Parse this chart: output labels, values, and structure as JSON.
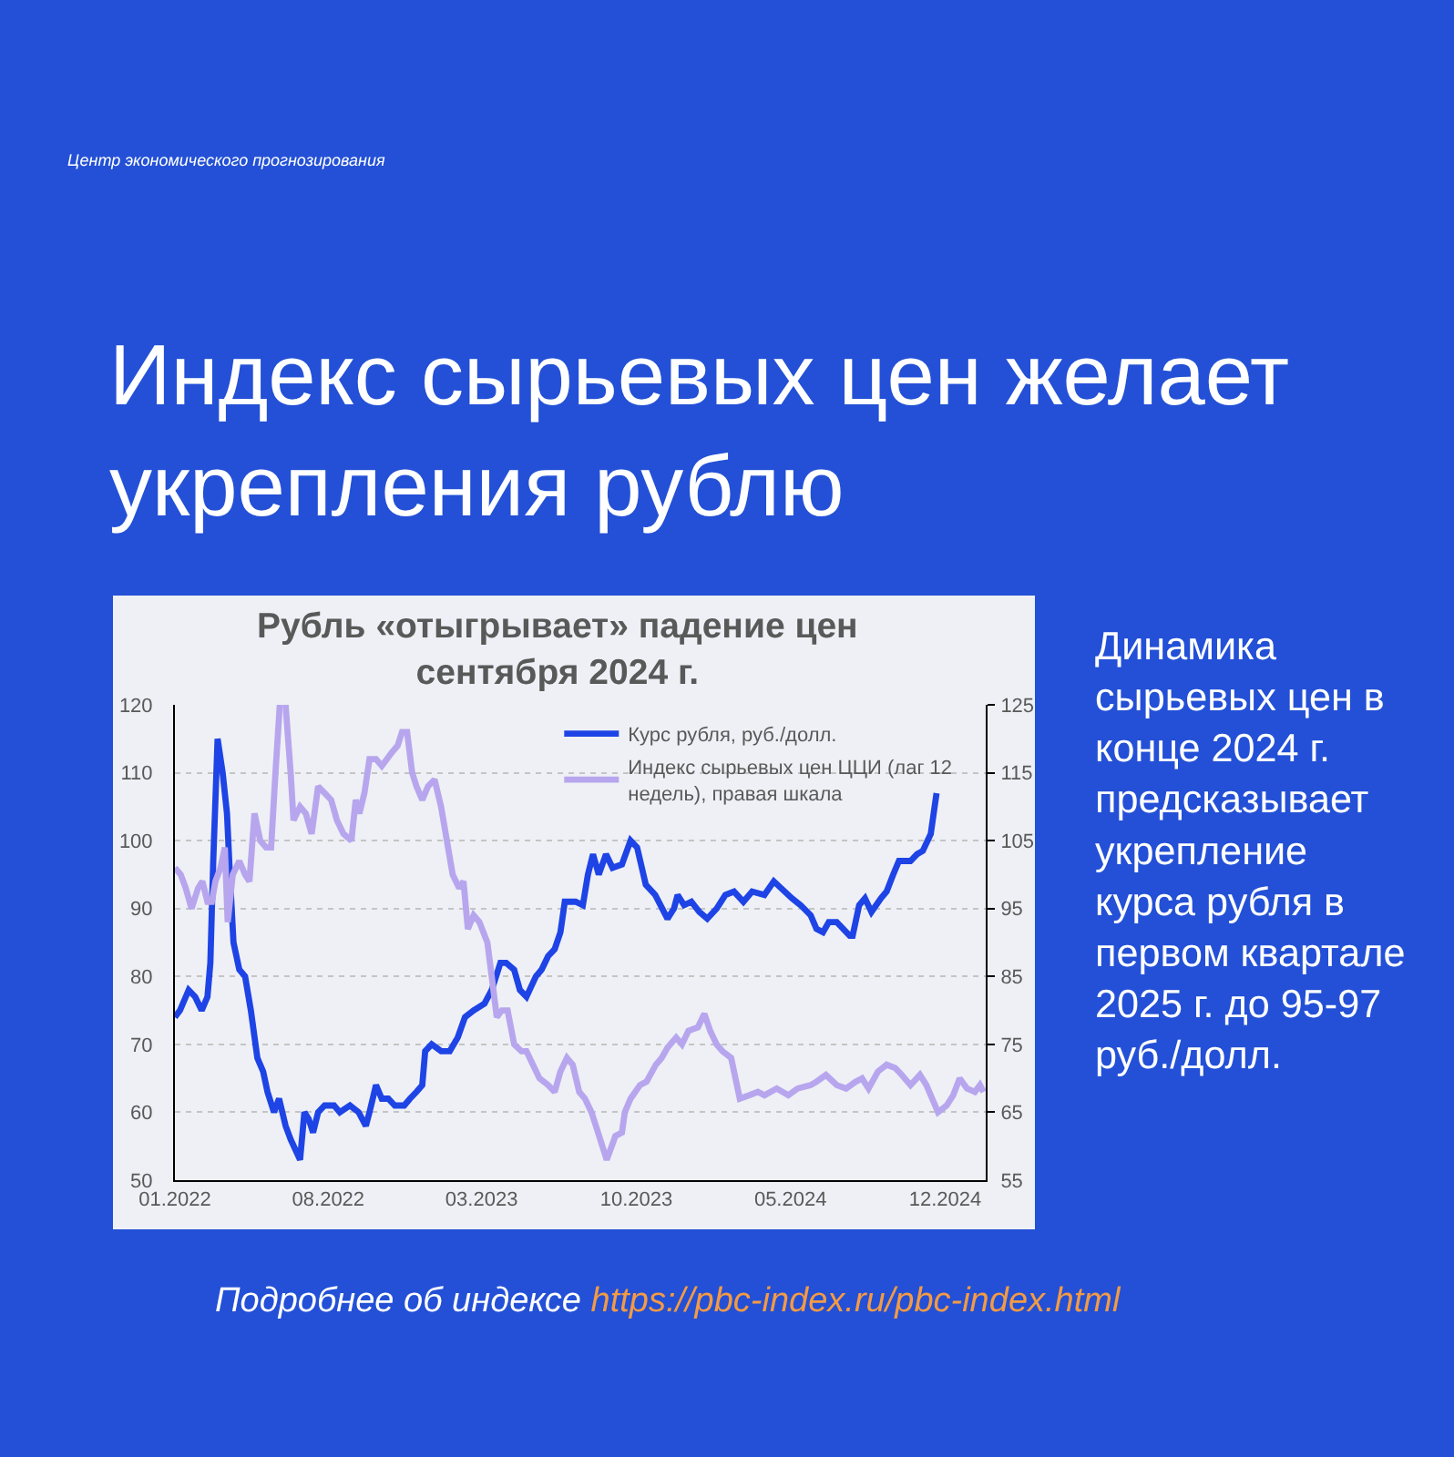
{
  "chart_data": {
    "type": "line",
    "title": "Индекс сырьевых цен желает\nукрепления рублю",
    "subtitle": "Рубль «отыгрывает» падение цен\nсентября 2024 г.",
    "annotations": [
      "Центр экономического прогнозирования",
      "Динамика\nсырьевых цен в\nконце 2024 г.\nпредсказывает\nукрепление\nкурса рубля в\nпервом квартале\n2025 г. до 95-97\nруб./долл.",
      "Подробнее об индексе",
      "https://pbc-index.ru/pbc-index.html"
    ],
    "series": [
      {
        "name": "Курс рубля, руб./долл.",
        "color": "#1e44e6",
        "axis": "y",
        "x": [
          "2022-01-01",
          "2022-01-08",
          "2022-01-20",
          "2022-01-29",
          "2022-02-07",
          "2022-02-15",
          "2022-02-19",
          "2022-02-23",
          "2022-03-01",
          "2022-03-08",
          "2022-03-14",
          "2022-03-18",
          "2022-03-23",
          "2022-03-31",
          "2022-04-08",
          "2022-04-16",
          "2022-04-25",
          "2022-05-03",
          "2022-05-09",
          "2022-05-18",
          "2022-05-25",
          "2022-06-03",
          "2022-06-10",
          "2022-06-23",
          "2022-06-29",
          "2022-07-05",
          "2022-07-11",
          "2022-07-18",
          "2022-07-27",
          "2022-08-09",
          "2022-08-17",
          "2022-08-31",
          "2022-09-12",
          "2022-09-22",
          "2022-09-27",
          "2022-10-06",
          "2022-10-14",
          "2022-10-23",
          "2022-11-01",
          "2022-11-14",
          "2022-11-22",
          "2022-12-01",
          "2022-12-09",
          "2022-12-13",
          "2022-12-22",
          "2023-01-04",
          "2023-01-16",
          "2023-01-27",
          "2023-02-06",
          "2023-02-18",
          "2023-03-05",
          "2023-03-15",
          "2023-03-27",
          "2023-04-04",
          "2023-04-15",
          "2023-04-23",
          "2023-05-02",
          "2023-05-15",
          "2023-05-23",
          "2023-06-01",
          "2023-06-10",
          "2023-06-18",
          "2023-06-24",
          "2023-07-09",
          "2023-07-19",
          "2023-07-26",
          "2023-08-02",
          "2023-08-10",
          "2023-08-20",
          "2023-08-29",
          "2023-09-11",
          "2023-09-23",
          "2023-10-02",
          "2023-10-14",
          "2023-10-27",
          "2023-11-13",
          "2023-11-22",
          "2023-11-27",
          "2023-12-06",
          "2023-12-16",
          "2023-12-27",
          "2024-01-07",
          "2024-01-20",
          "2024-02-01",
          "2024-02-13",
          "2024-02-26",
          "2024-03-09",
          "2024-03-26",
          "2024-04-08",
          "2024-05-03",
          "2024-05-15",
          "2024-05-29",
          "2024-06-06",
          "2024-06-15",
          "2024-06-23",
          "2024-07-04",
          "2024-07-22",
          "2024-07-26",
          "2024-08-04",
          "2024-08-12",
          "2024-08-21",
          "2024-09-03",
          "2024-09-11",
          "2024-09-20",
          "2024-09-28",
          "2024-10-14",
          "2024-10-23",
          "2024-10-31",
          "2024-11-11",
          "2024-11-15",
          "2024-11-19"
        ],
        "values": [
          74,
          75,
          78,
          77,
          75,
          77,
          82,
          97,
          115,
          110,
          104,
          95,
          85,
          81,
          80,
          75,
          68,
          66,
          63,
          60,
          62,
          58,
          56,
          53,
          60,
          59,
          57,
          60,
          61,
          61,
          60,
          61,
          60,
          58,
          60,
          64,
          62,
          62,
          61,
          61,
          62,
          63,
          64,
          69,
          70,
          69,
          69,
          71,
          74,
          75,
          76,
          78,
          82,
          82,
          81,
          78,
          77,
          80,
          81,
          83,
          84,
          86.5,
          91,
          91,
          90.5,
          95,
          98,
          95,
          98,
          96,
          96.5,
          100,
          99,
          93.5,
          92,
          88.5,
          90,
          92,
          90.5,
          91,
          89.5,
          88.5,
          90,
          92,
          92.5,
          91,
          92.5,
          92,
          94,
          91.5,
          90.5,
          89,
          87,
          86.5,
          88,
          88,
          86,
          86,
          90.5,
          91.5,
          89.5,
          91.5,
          92.5,
          95,
          97,
          97,
          98,
          98.5,
          101,
          104,
          107
        ]
      },
      {
        "name": "Индекс сырьевых цен ЦЦИ (лаг 12 недель), правая шкала",
        "color": "#b7a6ee",
        "axis": "y2",
        "x": [
          "2022-01-01",
          "2022-01-09",
          "2022-01-16",
          "2022-01-24",
          "2022-02-02",
          "2022-02-08",
          "2022-02-15",
          "2022-02-21",
          "2022-02-26",
          "2022-03-05",
          "2022-03-11",
          "2022-03-15",
          "2022-03-22",
          "2022-03-31",
          "2022-04-08",
          "2022-04-14",
          "2022-04-21",
          "2022-04-29",
          "2022-05-07",
          "2022-05-14",
          "2022-05-20",
          "2022-05-26",
          "2022-05-29",
          "2022-06-03",
          "2022-06-10",
          "2022-06-14",
          "2022-06-23",
          "2022-07-01",
          "2022-07-09",
          "2022-07-18",
          "2022-07-27",
          "2022-08-05",
          "2022-08-13",
          "2022-08-22",
          "2022-09-02",
          "2022-09-08",
          "2022-09-13",
          "2022-09-20",
          "2022-09-27",
          "2022-10-06",
          "2022-10-14",
          "2022-10-21",
          "2022-10-28",
          "2022-11-05",
          "2022-11-11",
          "2022-11-18",
          "2022-11-25",
          "2022-12-01",
          "2022-12-09",
          "2022-12-17",
          "2022-12-26",
          "2023-01-04",
          "2023-01-12",
          "2023-01-20",
          "2023-01-29",
          "2023-02-04",
          "2023-02-10",
          "2023-02-18",
          "2023-02-26",
          "2023-03-09",
          "2023-03-15",
          "2023-03-22",
          "2023-03-29",
          "2023-04-06",
          "2023-04-15",
          "2023-04-25",
          "2023-05-02",
          "2023-05-11",
          "2023-05-20",
          "2023-06-01",
          "2023-06-10",
          "2023-06-18",
          "2023-06-27",
          "2023-07-05",
          "2023-07-14",
          "2023-07-22",
          "2023-07-31",
          "2023-08-09",
          "2023-08-21",
          "2023-09-02",
          "2023-09-11",
          "2023-09-15",
          "2023-09-23",
          "2023-10-06",
          "2023-10-15",
          "2023-10-28",
          "2023-11-05",
          "2023-11-13",
          "2023-11-25",
          "2023-12-03",
          "2023-12-12",
          "2023-12-25",
          "2024-01-03",
          "2024-01-11",
          "2024-01-20",
          "2024-01-28",
          "2024-02-09",
          "2024-02-21",
          "2024-03-05",
          "2024-03-17",
          "2024-03-26",
          "2024-04-12",
          "2024-04-28",
          "2024-05-11",
          "2024-05-29",
          "2024-06-06",
          "2024-06-19",
          "2024-07-04",
          "2024-07-17",
          "2024-07-30",
          "2024-08-08",
          "2024-08-17",
          "2024-08-30",
          "2024-09-11",
          "2024-09-23",
          "2024-10-02",
          "2024-10-14",
          "2024-10-27",
          "2024-11-05",
          "2024-11-13",
          "2024-11-21",
          "2024-12-03",
          "2024-12-12",
          "2024-12-21",
          "2024-12-31",
          "2025-01-11",
          "2025-01-18",
          "2025-01-23"
        ],
        "values": [
          101,
          100,
          98,
          95,
          98,
          99,
          96,
          96,
          99,
          101,
          104,
          93,
          100,
          102,
          100,
          99,
          109,
          105,
          104,
          104,
          115,
          125,
          null,
          125,
          115,
          108,
          110,
          109,
          106,
          113,
          112,
          111,
          108,
          106,
          105,
          111,
          109,
          112,
          117,
          117,
          116,
          117,
          118,
          119,
          121,
          121,
          115,
          113,
          111,
          113,
          114,
          110,
          105,
          100,
          98,
          99,
          92,
          94,
          93,
          90,
          85,
          79,
          80,
          80,
          75,
          74,
          74,
          72,
          70,
          69,
          68,
          71,
          73,
          72,
          68,
          67,
          65,
          62,
          58,
          61.5,
          62,
          65,
          67,
          69,
          69.5,
          72,
          73,
          74.5,
          76,
          75,
          77,
          77.5,
          79.5,
          77,
          75,
          74,
          73,
          67,
          67.5,
          68,
          67.5,
          68.5,
          67.5,
          68.5,
          69,
          69.5,
          70.5,
          69,
          68.5,
          69.5,
          70,
          68.5,
          71,
          72,
          71.5,
          70.5,
          69,
          70.5,
          69,
          67,
          65,
          66,
          67.5,
          70,
          68.5,
          68,
          69,
          68
        ]
      }
    ],
    "xlim": [
      "2022-01-01",
      "2025-01-26"
    ],
    "xticks": [
      {
        "value": "2022-01-01",
        "label": "01.2022"
      },
      {
        "value": "2022-08-01",
        "label": "08.2022"
      },
      {
        "value": "2023-03-01",
        "label": "03.2023"
      },
      {
        "value": "2023-10-01",
        "label": "10.2023"
      },
      {
        "value": "2024-05-01",
        "label": "05.2024"
      },
      {
        "value": "2024-12-01",
        "label": "12.2024"
      }
    ],
    "ylim": [
      50,
      120
    ],
    "yticks": [
      50,
      60,
      70,
      80,
      90,
      100,
      110,
      120
    ],
    "y2lim": [
      55,
      125
    ],
    "y2ticks": [
      55,
      65,
      75,
      85,
      95,
      105,
      115,
      125
    ],
    "grid": "y",
    "legend": "top right",
    "line_style": "solid"
  }
}
